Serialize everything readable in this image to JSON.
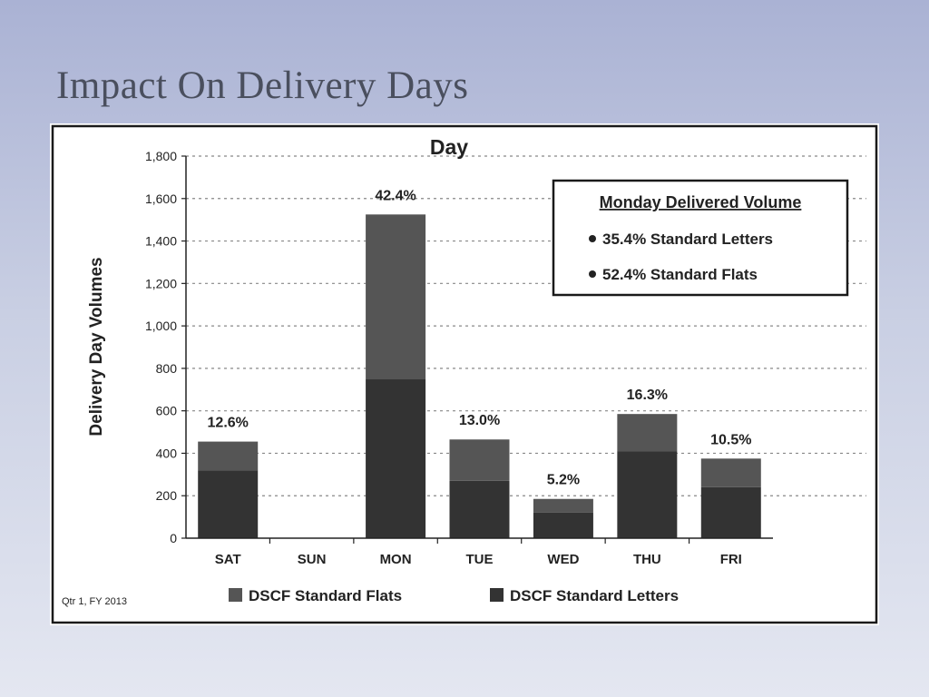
{
  "slide": {
    "title": "Impact On Delivery Days"
  },
  "colors": {
    "letters": "#333333",
    "flats": "#555555",
    "background_top": "#aab2d4",
    "background_bottom": "#e4e7f1"
  },
  "chart_data": {
    "type": "bar",
    "stacked": true,
    "title": "Day",
    "xlabel": "",
    "ylabel": "Delivery Day Volumes",
    "ylim": [
      0,
      1800
    ],
    "yticks": [
      "0",
      "200",
      "400",
      "600",
      "800",
      "1,000",
      "1,200",
      "1,400",
      "1,600",
      "1,800"
    ],
    "grid": true,
    "legend_position": "bottom",
    "categories": [
      "SAT",
      "SUN",
      "MON",
      "TUE",
      "WED",
      "THU",
      "FRI"
    ],
    "series": [
      {
        "name": "DSCF Standard Letters",
        "values": [
          320,
          0,
          750,
          270,
          120,
          410,
          240
        ]
      },
      {
        "name": "DSCF Standard Flats",
        "values": [
          135,
          0,
          775,
          195,
          65,
          175,
          135
        ]
      }
    ],
    "data_labels": [
      "12.6%",
      "",
      "42.4%",
      "13.0%",
      "5.2%",
      "16.3%",
      "10.5%"
    ],
    "legend_order": [
      "DSCF Standard Flats",
      "DSCF Standard Letters"
    ],
    "annotation_box": {
      "title": "Monday Delivered Volume",
      "items": [
        "35.4% Standard Letters",
        "52.4% Standard Flats"
      ]
    },
    "footnote": "Qtr 1, FY 2013"
  }
}
